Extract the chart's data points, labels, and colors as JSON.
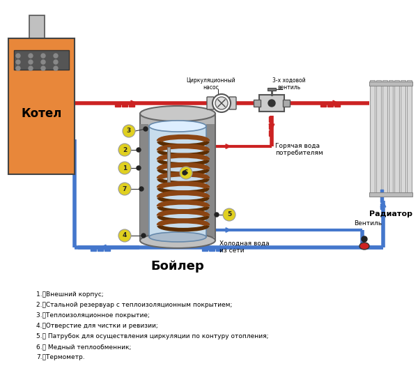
{
  "bg_color": "#ffffff",
  "red_color": "#cc2222",
  "blue_color": "#4477cc",
  "orange_color": "#e8873a",
  "gray_color": "#aaaaaa",
  "tank_outer_color": "#b8b8b8",
  "tank_inner_color": "#c8dff0",
  "coil_color": "#8B4513",
  "yellow_color": "#e8d830",
  "kotel_label": "Котел",
  "radiator_label": "Радиатор",
  "boiler_label": "Бойлер",
  "pump_label": "Циркуляционный\nнасос",
  "valve3_label": "3-х ходовой\nвентиль",
  "hotwater_label": "Горячая вода\nпотребителям",
  "coldwater_label": "Холодная вода\nиз сети",
  "valve_label": "Вентиль",
  "legend": [
    "1.\tВнешний корпус;",
    "2.\tСтальной резервуар с теплоизоляционным покрытием;",
    "3.\tТеплоизоляционное покрытие;",
    "4.\tОтверстие для чистки и ревизии;",
    "5.\t Патрубок для осуществления циркуляции по контуру отопления;",
    "6.\t Медный теплообменник;",
    "7.\tТермометр."
  ]
}
